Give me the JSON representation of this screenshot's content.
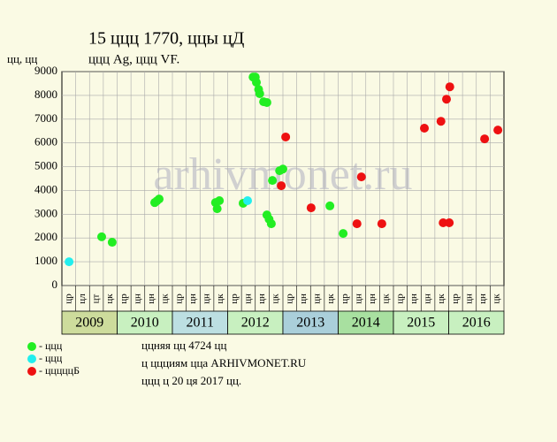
{
  "chart_data": {
    "type": "scatter",
    "title": "15 ццц 1770, ццы цД",
    "subtitle": "ццц Ag, ццц VF.",
    "y_label": "цц, цц",
    "watermark": "arhivmonet.ru",
    "xlim": [
      2009,
      2017
    ],
    "ylim": [
      0,
      9000
    ],
    "yticks": [
      0,
      1000,
      2000,
      3000,
      4000,
      5000,
      6000,
      7000,
      8000,
      9000
    ],
    "grid": true,
    "quarter_labels": [
      "цр",
      "цл",
      "цт",
      "цк",
      "цр",
      "цн",
      "цн",
      "цк",
      "цр",
      "цн",
      "цн",
      "цк",
      "цр",
      "цн",
      "цн",
      "цк",
      "цр",
      "цн",
      "цн",
      "цк",
      "цр",
      "цн",
      "цн",
      "цк",
      "цр",
      "цн",
      "цн",
      "цк",
      "цр",
      "цн",
      "цн",
      "цк"
    ],
    "years": [
      "2009",
      "2010",
      "2011",
      "2012",
      "2013",
      "2014",
      "2015",
      "2016"
    ],
    "year_colors": [
      "#cddc9c",
      "#c8f0c0",
      "#bcdfe2",
      "#c8f0c0",
      "#aacfda",
      "#a8e0a0",
      "#c8f0c0",
      "#c8f0c0"
    ],
    "series": [
      {
        "name": "- ццц",
        "color": "#22ee22",
        "x": [
          2009.72,
          2009.91,
          2010.68,
          2010.72,
          2010.76,
          2011.78,
          2011.81,
          2011.85,
          2012.28,
          2012.46,
          2012.5,
          2012.52,
          2012.56,
          2012.58,
          2012.65,
          2012.71,
          2012.71,
          2012.75,
          2012.79,
          2012.81,
          2012.94,
          2013.0,
          2013.85,
          2014.09
        ],
        "values": [
          2050,
          1820,
          3490,
          3560,
          3640,
          3490,
          3230,
          3570,
          3460,
          8770,
          8770,
          8550,
          8250,
          8070,
          7730,
          7700,
          2970,
          2790,
          2600,
          4420,
          4830,
          4900,
          3350,
          2190
        ]
      },
      {
        "name": "- ццц",
        "color": "#22eeee",
        "x": [
          2009.13,
          2012.36
        ],
        "values": [
          1000,
          3570
        ]
      },
      {
        "name": "- цццццБ",
        "color": "#ee1111",
        "x": [
          2012.97,
          2013.05,
          2013.51,
          2014.34,
          2014.42,
          2014.79,
          2015.56,
          2015.86,
          2015.9,
          2015.96,
          2016.01,
          2016.02,
          2016.65,
          2016.89
        ],
        "values": [
          4200,
          6250,
          3270,
          2600,
          4570,
          2600,
          6620,
          6910,
          2640,
          7840,
          2640,
          8360,
          6170,
          6540
        ]
      }
    ],
    "notes": [
      "ццняя цц 4724 цц",
      "ц ццциям цца ARHIVMONET.RU",
      "ццц ц 20 ця 2017 цц."
    ]
  }
}
